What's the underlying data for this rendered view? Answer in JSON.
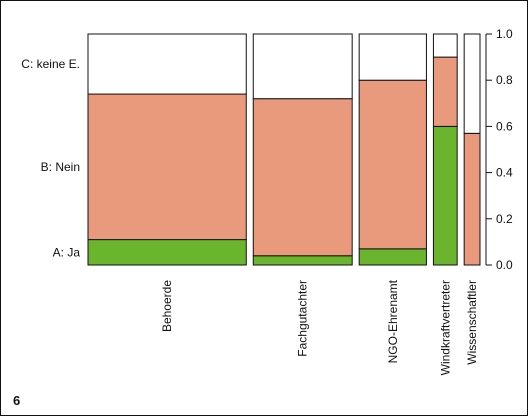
{
  "figure_number": "6",
  "chart_data": {
    "type": "mosaic",
    "categories": [
      "Behoerde",
      "Fachgutachter",
      "NGO-Ehrenamt",
      "Windkraftvertreter",
      "Wissenschaftler"
    ],
    "category_share": [
      0.4,
      0.25,
      0.17,
      0.06,
      0.04
    ],
    "series": [
      {
        "name": "A: Ja",
        "values": [
          0.11,
          0.04,
          0.07,
          0.6,
          0.0
        ],
        "color": "#6ab42e"
      },
      {
        "name": "B: Nein",
        "values": [
          0.63,
          0.68,
          0.73,
          0.3,
          0.57
        ],
        "color": "#e99a7d"
      },
      {
        "name": "C: keine E.",
        "values": [
          0.26,
          0.28,
          0.2,
          0.1,
          0.43
        ],
        "color": "#ffffff"
      }
    ],
    "y_axis": {
      "ticks": [
        "0.0",
        "0.2",
        "0.4",
        "0.6",
        "0.8",
        "1.0"
      ],
      "range": [
        0,
        1
      ]
    },
    "left_labels": [
      "C: keine E.",
      "B: Nein",
      "A: Ja"
    ]
  }
}
